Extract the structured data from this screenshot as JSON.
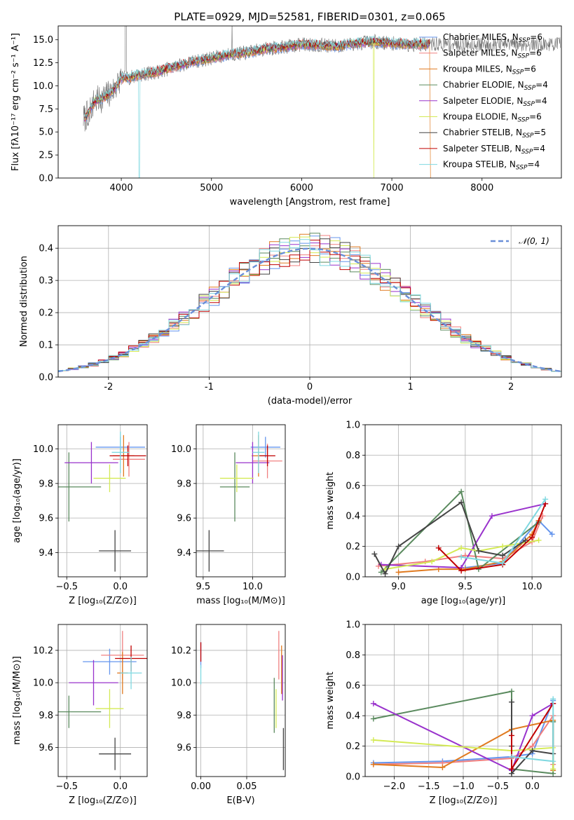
{
  "figure": {
    "title": "PLATE=0929, MJD=52581, FIBERID=0301, z=0.065"
  },
  "series_styles": [
    {
      "name": "Chabrier MILES",
      "nssp": "6",
      "color": "#6495ed"
    },
    {
      "name": "Salpeter MILES",
      "nssp": "6",
      "color": "#f08080"
    },
    {
      "name": "Kroupa MILES",
      "nssp": "6",
      "color": "#e07a20"
    },
    {
      "name": "Chabrier ELODIE",
      "nssp": "4",
      "color": "#5a8a5e"
    },
    {
      "name": "Salpeter ELODIE",
      "nssp": "4",
      "color": "#9932cc"
    },
    {
      "name": "Kroupa ELODIE",
      "nssp": "6",
      "color": "#d4ea55"
    },
    {
      "name": "Chabrier STELIB",
      "nssp": "5",
      "color": "#444444"
    },
    {
      "name": "Salpeter STELIB",
      "nssp": "4",
      "color": "#c00000"
    },
    {
      "name": "Kroupa STELIB",
      "nssp": "4",
      "color": "#7fd8e0"
    }
  ],
  "chart_data": [
    {
      "id": "spectrum",
      "type": "line",
      "title": "PLATE=0929, MJD=52581, FIBERID=0301, z=0.065",
      "xlabel": "wavelength [Angstrom, rest frame]",
      "ylabel": "Flux [fλ10⁻¹⁷ erg cm⁻² s⁻¹ A⁻¹]",
      "xlim": [
        3300,
        8880
      ],
      "ylim": [
        0,
        16.5
      ],
      "xticks": [
        4000,
        5000,
        6000,
        7000,
        8000
      ],
      "yticks": [
        "0.0",
        "2.5",
        "5.0",
        "7.5",
        "10.0",
        "12.5",
        "15.0"
      ],
      "data": {
        "x": [
          3600,
          3700,
          3800,
          3900,
          4000,
          4100,
          4200,
          4400,
          4600,
          4800,
          5000,
          5200,
          5400,
          5600,
          5800,
          6000,
          6200,
          6400,
          6600,
          6800,
          7000,
          7200,
          7400
        ],
        "y": [
          6.5,
          8.3,
          8.7,
          9.4,
          10.8,
          10.9,
          11.2,
          11.5,
          12.1,
          12.6,
          13.0,
          13.4,
          13.6,
          14.0,
          14.2,
          14.5,
          14.4,
          14.3,
          14.6,
          14.8,
          14.6,
          14.5,
          14.5
        ]
      },
      "legend": "upper right",
      "grid": false
    },
    {
      "id": "residuals",
      "type": "bar",
      "xlabel": "(data-model)/error",
      "ylabel": "Normed distribution",
      "xlim": [
        -2.5,
        2.5
      ],
      "ylim": [
        0,
        0.47
      ],
      "xticks": [
        -2,
        -1,
        0,
        1,
        2
      ],
      "yticks": [
        "0.0",
        "0.1",
        "0.2",
        "0.3",
        "0.4"
      ],
      "bin_centers": [
        -2.45,
        -2.35,
        -2.25,
        -2.15,
        -2.05,
        -1.95,
        -1.85,
        -1.75,
        -1.65,
        -1.55,
        -1.45,
        -1.35,
        -1.25,
        -1.15,
        -1.05,
        -0.95,
        -0.85,
        -0.75,
        -0.65,
        -0.55,
        -0.45,
        -0.35,
        -0.25,
        -0.15,
        -0.05,
        0.05,
        0.15,
        0.25,
        0.35,
        0.45,
        0.55,
        0.65,
        0.75,
        0.85,
        0.95,
        1.05,
        1.15,
        1.25,
        1.35,
        1.45,
        1.55,
        1.65,
        1.75,
        1.85,
        1.95,
        2.05,
        2.15,
        2.25,
        2.35,
        2.45
      ],
      "reference_curve": {
        "name": "𝒩(0, 1)",
        "color": "#6a8fd8"
      },
      "legend": "upper right",
      "grid": true
    },
    {
      "id": "age-vs-Z",
      "type": "scatter",
      "xlabel": "Z [log₁₀(Z/Z⊙)]",
      "ylabel": "age  [log₁₀(age/yr)]",
      "xlim": [
        -0.58,
        0.25
      ],
      "ylim": [
        9.26,
        10.14
      ],
      "xticks": [
        "−0.5",
        "0.0"
      ],
      "xtick_values": [
        -0.5,
        0.0
      ],
      "yticks": [
        "9.4",
        "9.6",
        "9.8",
        "10.0"
      ],
      "ytick_values": [
        9.4,
        9.6,
        9.8,
        10.0
      ],
      "points": [
        {
          "x": 0.0,
          "y": 10.01,
          "xerr": 0.23,
          "yerr": 0.06
        },
        {
          "x": 0.08,
          "y": 9.94,
          "xerr": 0.15,
          "yerr": 0.1
        },
        {
          "x": 0.03,
          "y": 9.96,
          "xerr": 0.1,
          "yerr": 0.12
        },
        {
          "x": -0.48,
          "y": 9.78,
          "xerr": 0.3,
          "yerr": 0.2
        },
        {
          "x": -0.27,
          "y": 9.92,
          "xerr": 0.25,
          "yerr": 0.12
        },
        {
          "x": -0.1,
          "y": 9.83,
          "xerr": 0.15,
          "yerr": 0.08
        },
        {
          "x": -0.05,
          "y": 9.41,
          "xerr": 0.15,
          "yerr": 0.12
        },
        {
          "x": 0.07,
          "y": 9.96,
          "xerr": 0.17,
          "yerr": 0.06
        },
        {
          "x": 0.0,
          "y": 9.98,
          "xerr": 0.08,
          "yerr": 0.12
        }
      ],
      "grid": true
    },
    {
      "id": "age-vs-mass",
      "type": "scatter",
      "xlabel": "mass [log₁₀(M/M⊙)]",
      "xlim": [
        9.43,
        10.33
      ],
      "ylim": [
        9.26,
        10.14
      ],
      "xticks": [
        "9.5",
        "10.0"
      ],
      "xtick_values": [
        9.5,
        10.0
      ],
      "yticks": [
        "9.4",
        "9.6",
        "9.8",
        "10.0"
      ],
      "ytick_values": [
        9.4,
        9.6,
        9.8,
        10.0
      ],
      "points": [
        {
          "x": 10.13,
          "y": 10.01,
          "xerr": 0.15,
          "yerr": 0.06
        },
        {
          "x": 10.15,
          "y": 9.93,
          "xerr": 0.15,
          "yerr": 0.1
        },
        {
          "x": 10.06,
          "y": 9.96,
          "xerr": 0.07,
          "yerr": 0.12
        },
        {
          "x": 9.82,
          "y": 9.78,
          "xerr": 0.15,
          "yerr": 0.2
        },
        {
          "x": 10.0,
          "y": 9.92,
          "xerr": 0.17,
          "yerr": 0.12
        },
        {
          "x": 9.84,
          "y": 9.83,
          "xerr": 0.17,
          "yerr": 0.08
        },
        {
          "x": 9.56,
          "y": 9.41,
          "xerr": 0.15,
          "yerr": 0.12
        },
        {
          "x": 10.15,
          "y": 9.96,
          "xerr": 0.08,
          "yerr": 0.06
        },
        {
          "x": 10.06,
          "y": 9.98,
          "xerr": 0.06,
          "yerr": 0.12
        }
      ],
      "grid": true
    },
    {
      "id": "weight-vs-age",
      "type": "line",
      "xlabel": "age  [log₁₀(age/yr)]",
      "ylabel": "mass weight",
      "xlim": [
        8.75,
        10.22
      ],
      "ylim": [
        0,
        1
      ],
      "xticks": [
        "9.0",
        "9.5",
        "10.0"
      ],
      "xtick_values": [
        9.0,
        9.5,
        10.0
      ],
      "yticks": [
        "0.0",
        "0.2",
        "0.4",
        "0.6",
        "0.8",
        "1.0"
      ],
      "ytick_values": [
        0,
        0.2,
        0.4,
        0.6,
        0.8,
        1.0
      ],
      "series": [
        {
          "x": [
            9.5,
            9.78,
            10.05,
            10.15
          ],
          "y": [
            0.06,
            0.09,
            0.37,
            0.28
          ]
        },
        {
          "x": [
            8.85,
            9.2,
            9.5,
            9.78,
            10.0,
            10.08
          ],
          "y": [
            0.07,
            0.1,
            0.14,
            0.12,
            0.23,
            0.4
          ]
        },
        {
          "x": [
            9.0,
            9.3,
            9.5,
            9.78,
            10.0,
            10.05
          ],
          "y": [
            0.03,
            0.05,
            0.05,
            0.1,
            0.28,
            0.37
          ]
        },
        {
          "x": [
            8.87,
            9.47,
            9.6,
            10.05
          ],
          "y": [
            0.03,
            0.56,
            0.05,
            0.36
          ]
        },
        {
          "x": [
            8.87,
            9.47,
            9.7,
            10.1
          ],
          "y": [
            0.08,
            0.06,
            0.4,
            0.48
          ]
        },
        {
          "x": [
            8.9,
            9.25,
            9.47,
            9.6,
            9.78,
            10.05
          ],
          "y": [
            0.05,
            0.1,
            0.19,
            0.17,
            0.2,
            0.24
          ]
        },
        {
          "x": [
            8.82,
            8.9,
            9.0,
            9.47,
            9.6,
            9.78,
            9.95
          ],
          "y": [
            0.15,
            0.02,
            0.2,
            0.49,
            0.17,
            0.14,
            0.24
          ]
        },
        {
          "x": [
            9.3,
            9.47,
            9.78,
            10.0,
            10.1
          ],
          "y": [
            0.19,
            0.04,
            0.08,
            0.26,
            0.48
          ]
        },
        {
          "x": [
            9.47,
            9.78,
            10.1
          ],
          "y": [
            0.13,
            0.09,
            0.51
          ]
        }
      ],
      "grid": true
    },
    {
      "id": "mass-vs-Z",
      "type": "scatter",
      "xlabel": "Z [log₁₀(Z/Z⊙)]",
      "ylabel": "mass [log₁₀(M/M⊙)]",
      "xlim": [
        -0.58,
        0.25
      ],
      "ylim": [
        9.42,
        10.36
      ],
      "xticks": [
        "−0.5",
        "0.0"
      ],
      "xtick_values": [
        -0.5,
        0.0
      ],
      "yticks": [
        "9.6",
        "9.8",
        "10.0",
        "10.2"
      ],
      "ytick_values": [
        9.6,
        9.8,
        10.0,
        10.2
      ],
      "points": [
        {
          "x": -0.1,
          "y": 10.13,
          "xerr": 0.25,
          "yerr": 0.08
        },
        {
          "x": 0.02,
          "y": 10.17,
          "xerr": 0.2,
          "yerr": 0.15
        },
        {
          "x": 0.02,
          "y": 10.06,
          "xerr": 0.05,
          "yerr": 0.13
        },
        {
          "x": -0.48,
          "y": 9.82,
          "xerr": 0.3,
          "yerr": 0.1
        },
        {
          "x": -0.25,
          "y": 10.0,
          "xerr": 0.23,
          "yerr": 0.14
        },
        {
          "x": -0.1,
          "y": 9.84,
          "xerr": 0.13,
          "yerr": 0.12
        },
        {
          "x": -0.05,
          "y": 9.56,
          "xerr": 0.15,
          "yerr": 0.1
        },
        {
          "x": 0.1,
          "y": 10.15,
          "xerr": 0.15,
          "yerr": 0.08
        },
        {
          "x": 0.1,
          "y": 10.06,
          "xerr": 0.1,
          "yerr": 0.1
        }
      ],
      "grid": true
    },
    {
      "id": "mass-vs-ebv",
      "type": "scatter",
      "xlabel": "E(B-V)",
      "xlim": [
        -0.005,
        0.092
      ],
      "ylim": [
        9.42,
        10.36
      ],
      "xticks": [
        "0.00",
        "0.05"
      ],
      "xtick_values": [
        0.0,
        0.05
      ],
      "yticks": [
        "9.6",
        "9.8",
        "10.0",
        "10.2"
      ],
      "ytick_values": [
        9.6,
        9.8,
        10.0,
        10.2
      ],
      "points": [
        {
          "x": 0.0,
          "y": 10.17,
          "xerr": 0,
          "yerr": 0.08
        },
        {
          "x": 0.085,
          "y": 10.17,
          "xerr": 0,
          "yerr": 0.15
        },
        {
          "x": 0.088,
          "y": 10.08,
          "xerr": 0,
          "yerr": 0.15
        },
        {
          "x": 0.08,
          "y": 9.86,
          "xerr": 0,
          "yerr": 0.17
        },
        {
          "x": 0.089,
          "y": 10.03,
          "xerr": 0,
          "yerr": 0.14
        },
        {
          "x": 0.082,
          "y": 9.84,
          "xerr": 0,
          "yerr": 0.12
        },
        {
          "x": 0.09,
          "y": 9.59,
          "xerr": 0,
          "yerr": 0.13
        },
        {
          "x": 0.0,
          "y": 10.19,
          "xerr": 0,
          "yerr": 0.06
        },
        {
          "x": 0.0,
          "y": 10.05,
          "xerr": 0,
          "yerr": 0.06
        }
      ],
      "grid": true
    },
    {
      "id": "weight-vs-Z",
      "type": "line",
      "xlabel": "Z [log₁₀(Z/Z⊙)]",
      "ylabel": "mass weight",
      "xlim": [
        -2.42,
        0.42
      ],
      "ylim": [
        0,
        1
      ],
      "xticks": [
        "−2.0",
        "−1.5",
        "−1.0",
        "−0.5",
        "0.0"
      ],
      "xtick_values": [
        -2.0,
        -1.5,
        -1.0,
        -0.5,
        0.0
      ],
      "yticks": [
        "0.0",
        "0.2",
        "0.4",
        "0.6",
        "0.8",
        "1.0"
      ],
      "ytick_values": [
        0,
        0.2,
        0.4,
        0.6,
        0.8,
        1.0
      ],
      "series": [
        {
          "x": [
            -2.3,
            -1.3,
            -0.3,
            0.0,
            0.3
          ],
          "y": [
            0.09,
            0.1,
            0.13,
            0.15,
            0.5
          ]
        },
        {
          "x": [
            -2.3,
            -1.3,
            -0.3,
            0.0,
            0.3,
            0.3
          ],
          "y": [
            0.08,
            0.09,
            0.12,
            0.2,
            0.4,
            0.08
          ]
        },
        {
          "x": [
            -2.3,
            -1.3,
            -0.3,
            0.3,
            0.3
          ],
          "y": [
            0.08,
            0.06,
            0.31,
            0.37,
            0.04
          ]
        },
        {
          "x": [
            -2.3,
            -0.3,
            -0.3,
            0.3,
            0.3
          ],
          "y": [
            0.38,
            0.56,
            0.05,
            0.02,
            0.36
          ]
        },
        {
          "x": [
            -2.3,
            -0.3,
            0.0,
            0.3
          ],
          "y": [
            0.48,
            0.04,
            0.4,
            0.48
          ]
        },
        {
          "x": [
            -2.3,
            -0.3,
            0.3,
            0.3
          ],
          "y": [
            0.24,
            0.17,
            0.19,
            0.05
          ]
        },
        {
          "x": [
            -0.3,
            -0.3,
            -0.3,
            0.0,
            0.3
          ],
          "y": [
            0.49,
            0.2,
            0.02,
            0.17,
            0.15
          ]
        },
        {
          "x": [
            -0.3,
            -0.3,
            0.3
          ],
          "y": [
            0.27,
            0.05,
            0.48
          ]
        },
        {
          "x": [
            -0.3,
            0.3,
            0.3
          ],
          "y": [
            0.13,
            0.1,
            0.51
          ]
        }
      ],
      "grid": true
    }
  ]
}
